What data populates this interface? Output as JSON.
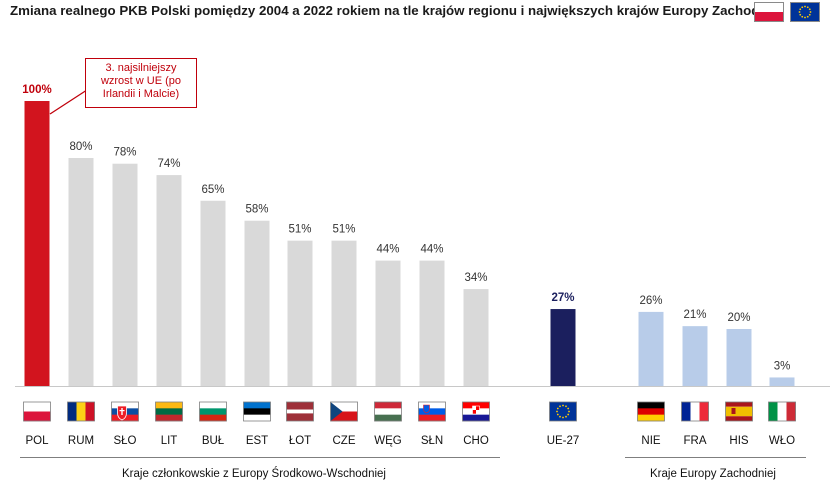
{
  "title": "Zmiana realnego PKB Polski pomiędzy 2004 a 2022 rokiem na tle krajów regionu i największych krajów Europy Zachodniej",
  "header_flags": [
    {
      "name": "Polska",
      "colors": [
        "#ffffff",
        "#dc143c"
      ]
    },
    {
      "name": "UE",
      "colors": [
        "#003399",
        "#ffcc00"
      ]
    }
  ],
  "callout": {
    "line1": "3. najsilniejszy",
    "line2": "wzrost w UE (po",
    "line3": "Irlandii i Malcie)"
  },
  "group_labels": {
    "cee": "Kraje członkowskie z Europy Środkowo-Wschodniej",
    "west": "Kraje Europy Zachodniej"
  },
  "chart_data": {
    "type": "bar",
    "title": "Zmiana realnego PKB Polski pomiędzy 2004 a 2022 rokiem na tle krajów regionu i największych krajów Europy Zachodniej",
    "ylabel": "",
    "xlabel": "",
    "ylim": [
      0,
      100
    ],
    "categories": [
      "POL",
      "RUM",
      "SŁO",
      "LIT",
      "BUŁ",
      "EST",
      "ŁOT",
      "CZE",
      "WĘG",
      "SŁN",
      "CHO",
      "UE-27",
      "NIE",
      "FRA",
      "HIS",
      "WŁO"
    ],
    "values": [
      100,
      80,
      78,
      74,
      65,
      58,
      51,
      51,
      44,
      44,
      34,
      27,
      26,
      21,
      20,
      3
    ],
    "value_labels": [
      "100%",
      "80%",
      "78%",
      "74%",
      "65%",
      "58%",
      "51%",
      "51%",
      "44%",
      "44%",
      "34%",
      "27%",
      "26%",
      "21%",
      "20%",
      "3%"
    ],
    "groups": [
      "poland",
      "cee",
      "cee",
      "cee",
      "cee",
      "cee",
      "cee",
      "cee",
      "cee",
      "cee",
      "cee",
      "eu",
      "west",
      "west",
      "west",
      "west"
    ],
    "colors": {
      "poland": "#d2141e",
      "cee": "#d9d9d9",
      "eu": "#1b1f5e",
      "west": "#b8cce9"
    },
    "label_colors": {
      "poland": "#c0000b",
      "cee": "#333333",
      "eu": "#1b1f5e",
      "west": "#333333"
    }
  }
}
